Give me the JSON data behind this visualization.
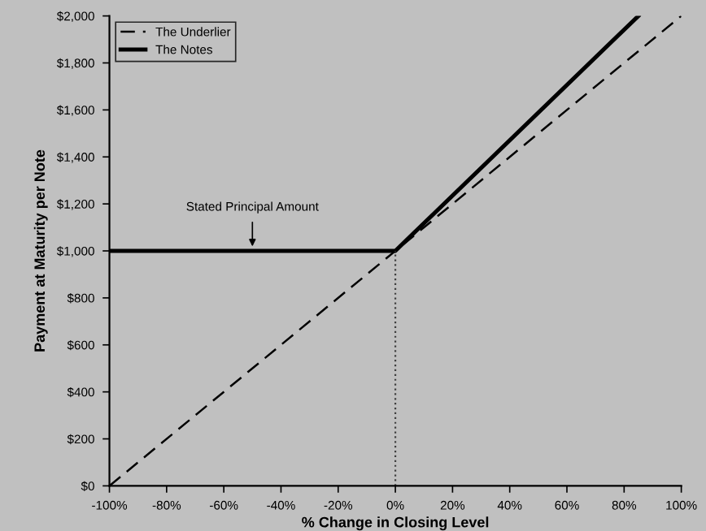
{
  "chart_data": {
    "type": "line",
    "xlabel": "% Change in Closing Level",
    "ylabel": "Payment at Maturity per Note",
    "series": [
      {
        "name": "The Underlier",
        "color": "#000000",
        "line_style": "dashed",
        "x": [
          -100,
          100
        ],
        "values": [
          0,
          2000
        ]
      },
      {
        "name": "The Notes",
        "color": "#000000",
        "line_style": "solid",
        "x": [
          -100,
          0,
          85
        ],
        "values": [
          1000,
          1000,
          2000
        ]
      },
      {
        "color": "#404040",
        "line_style": "dotted",
        "x": [
          0,
          0
        ],
        "values": [
          0,
          1000
        ]
      }
    ],
    "annotations": [
      {
        "text": "Stated Principal Amount",
        "x": -50,
        "y": 1000
      }
    ],
    "xlim": [
      -100,
      100
    ],
    "xticks": [
      {
        "value": -100,
        "label": "-100%"
      },
      {
        "value": -80,
        "label": "-80%"
      },
      {
        "value": -60,
        "label": "-60%"
      },
      {
        "value": -40,
        "label": "-40%"
      },
      {
        "value": -20,
        "label": "-20%"
      },
      {
        "value": 0,
        "label": "0%"
      },
      {
        "value": 20,
        "label": "20%"
      },
      {
        "value": 40,
        "label": "40%"
      },
      {
        "value": 60,
        "label": "60%"
      },
      {
        "value": 80,
        "label": "80%"
      },
      {
        "value": 100,
        "label": "100%"
      }
    ],
    "ylim": [
      0,
      2000
    ],
    "yticks": [
      {
        "value": 0,
        "label": "$0"
      },
      {
        "value": 200,
        "label": "$200"
      },
      {
        "value": 400,
        "label": "$400"
      },
      {
        "value": 600,
        "label": "$600"
      },
      {
        "value": 800,
        "label": "$800"
      },
      {
        "value": 1000,
        "label": "$1,000"
      },
      {
        "value": 1200,
        "label": "$1,200"
      },
      {
        "value": 1400,
        "label": "$1,400"
      },
      {
        "value": 1600,
        "label": "$1,600"
      },
      {
        "value": 1800,
        "label": "$1,800"
      },
      {
        "value": 2000,
        "label": "$2,000"
      }
    ],
    "grid": false,
    "legend": "top left",
    "marker": "none"
  }
}
